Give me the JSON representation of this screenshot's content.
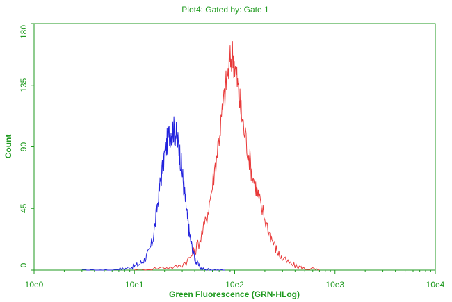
{
  "chart_data": {
    "type": "line",
    "title": "Plot4:  Gated by: Gate 1",
    "xlabel": "Green Fluorescence (GRN-HLog)",
    "ylabel": "Count",
    "x_scale": "log",
    "xlim": [
      1,
      10000
    ],
    "ylim": [
      0,
      180
    ],
    "x_tick_labels": [
      "10e0",
      "10e1",
      "10e2",
      "10e3",
      "10e4"
    ],
    "x_tick_values": [
      1,
      10,
      100,
      1000,
      10000
    ],
    "y_tick_labels": [
      "0",
      "45",
      "90",
      "135",
      "180"
    ],
    "y_tick_values": [
      0,
      45,
      90,
      135,
      180
    ],
    "grid": false,
    "legend": "none",
    "colors": {
      "axes": "#1f9a1f",
      "plot_border": "#1f9a1f"
    },
    "series": [
      {
        "color": "#2222dd",
        "x": [
          3,
          4,
          5,
          6,
          7,
          8,
          9,
          10,
          11,
          12,
          13,
          14,
          15,
          16,
          17,
          18,
          19,
          20,
          21,
          22,
          23,
          24,
          25,
          26,
          27,
          28,
          29,
          30,
          31,
          32,
          33,
          34,
          35,
          36,
          38,
          40,
          42,
          45,
          48,
          52,
          56,
          60,
          70,
          80
        ],
        "y": [
          0,
          0,
          0,
          0,
          1,
          1,
          2,
          3,
          4,
          6,
          9,
          13,
          20,
          32,
          48,
          62,
          74,
          84,
          92,
          98,
          101,
          103,
          102,
          99,
          94,
          88,
          80,
          71,
          62,
          53,
          44,
          36,
          29,
          23,
          15,
          9,
          5,
          2,
          1,
          0,
          1,
          0,
          0,
          0
        ]
      },
      {
        "color": "#e83a3a",
        "x": [
          10,
          15,
          20,
          25,
          30,
          35,
          40,
          45,
          50,
          55,
          60,
          65,
          70,
          75,
          80,
          85,
          90,
          95,
          100,
          105,
          110,
          115,
          120,
          130,
          140,
          150,
          160,
          170,
          180,
          200,
          220,
          240,
          260,
          280,
          300,
          350,
          400,
          450,
          500,
          600,
          700
        ],
        "y": [
          0,
          1,
          2,
          2,
          4,
          8,
          14,
          22,
          32,
          46,
          62,
          80,
          98,
          114,
          130,
          142,
          152,
          158,
          150,
          140,
          128,
          118,
          108,
          95,
          82,
          70,
          62,
          55,
          48,
          38,
          28,
          21,
          15,
          11,
          8,
          5,
          3,
          2,
          1,
          1,
          0
        ]
      }
    ]
  }
}
